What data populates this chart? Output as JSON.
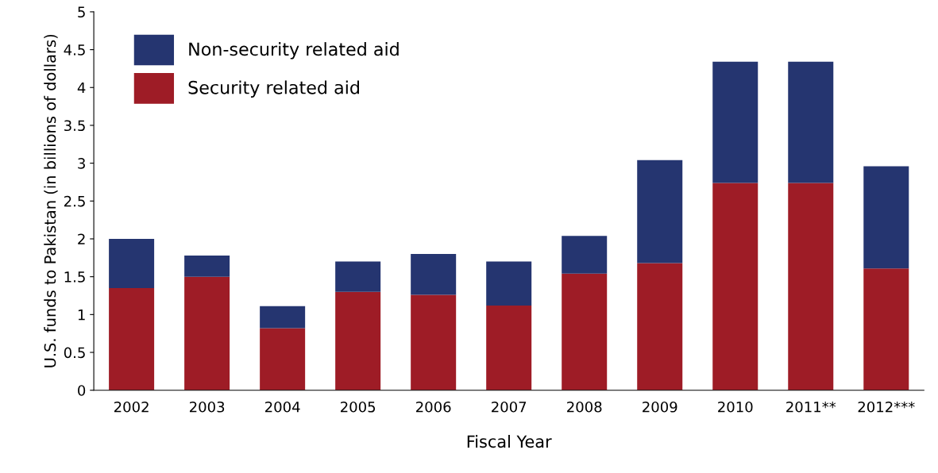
{
  "chart_data": {
    "type": "bar",
    "stacked": true,
    "xlabel": "Fiscal Year",
    "ylabel": "U.S. funds to Pakistan (in billions of dollars)",
    "categories": [
      "2002",
      "2003",
      "2004",
      "2005",
      "2006",
      "2007",
      "2008",
      "2009",
      "2010",
      "2011**",
      "2012***"
    ],
    "series": [
      {
        "name": "Security related aid",
        "color": "#9e1c26",
        "values": [
          1.35,
          1.5,
          0.82,
          1.3,
          1.26,
          1.12,
          1.54,
          1.68,
          2.74,
          2.74,
          1.61
        ]
      },
      {
        "name": "Non-security related aid",
        "color": "#253570",
        "values": [
          0.65,
          0.28,
          0.29,
          0.4,
          0.54,
          0.58,
          0.5,
          1.36,
          1.6,
          1.6,
          1.35
        ]
      }
    ],
    "ylim": [
      0,
      5
    ],
    "yticks": [
      0,
      0.5,
      1,
      1.5,
      2,
      2.5,
      3,
      3.5,
      4,
      4.5,
      5
    ],
    "grid": false,
    "legend": "top left"
  }
}
